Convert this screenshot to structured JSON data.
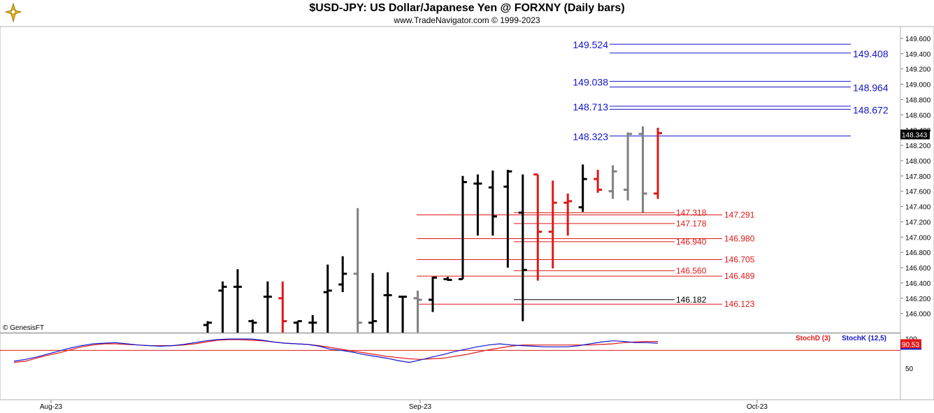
{
  "header": {
    "title": "$USD-JPY:  US Dollar/Japanese Yen @ FORXNY  (Daily bars)",
    "subtitle": "www.TradeNavigator.com © 1999-2023",
    "copyright_tag": "© GenesisFT"
  },
  "colors": {
    "up_bar": "#000000",
    "down_bar": "#e01818",
    "neutral_bar": "#808080",
    "blue_level": "#1414c8",
    "red_level": "#e01818",
    "stoch_k": "#1414c8",
    "stoch_d": "#e01818",
    "price_badge_bg": "#000000",
    "stoch_badge_bg": "#e01818"
  },
  "chart_data": [
    {
      "type": "ohlc",
      "title": "$USD-JPY:  US Dollar/Japanese Yen @ FORXNY  (Daily bars)",
      "ylim": [
        145.75,
        149.7
      ],
      "y_ticks": [
        "149.600",
        "149.400",
        "149.200",
        "149.000",
        "148.800",
        "148.600",
        "148.400",
        "148.200",
        "148.000",
        "147.800",
        "147.600",
        "147.400",
        "147.200",
        "147.000",
        "146.800",
        "146.600",
        "146.400",
        "146.200",
        "146.000"
      ],
      "last_price": "148.343",
      "x_labels": [
        "Aug-23",
        "Sep-23",
        "Oct-23"
      ],
      "bars": [
        {
          "c": "up",
          "h": 145.9,
          "l": 145.75,
          "o": 145.85,
          "cl": 145.88
        },
        {
          "c": "up",
          "h": 146.42,
          "l": 145.75,
          "o": 146.3,
          "cl": 146.35
        },
        {
          "c": "up",
          "h": 146.58,
          "l": 145.75,
          "o": 146.35,
          "cl": 146.35
        },
        {
          "c": "up",
          "h": 145.92,
          "l": 145.75,
          "o": 145.9,
          "cl": 145.88
        },
        {
          "c": "up",
          "h": 146.42,
          "l": 145.75,
          "o": 146.22,
          "cl": 146.22
        },
        {
          "c": "dn",
          "h": 146.42,
          "l": 145.75,
          "o": 146.2,
          "cl": 145.9
        },
        {
          "c": "up",
          "h": 145.9,
          "l": 145.75,
          "o": 145.88,
          "cl": 145.9
        },
        {
          "c": "up",
          "h": 145.98,
          "l": 145.75,
          "o": 145.88,
          "cl": 145.88
        },
        {
          "c": "up",
          "h": 146.64,
          "l": 145.75,
          "o": 146.28,
          "cl": 146.3
        },
        {
          "c": "up",
          "h": 146.75,
          "l": 146.28,
          "o": 146.38,
          "cl": 146.52
        },
        {
          "c": "nu",
          "h": 147.38,
          "l": 145.75,
          "o": 146.52,
          "cl": 145.88
        },
        {
          "c": "up",
          "h": 146.53,
          "l": 145.75,
          "o": 145.88,
          "cl": 145.9
        },
        {
          "c": "up",
          "h": 146.54,
          "l": 145.75,
          "o": 146.24,
          "cl": 146.24
        },
        {
          "c": "up",
          "h": 146.23,
          "l": 145.75,
          "o": 146.22,
          "cl": 146.22
        },
        {
          "c": "nu",
          "h": 146.3,
          "l": 145.75,
          "o": 146.2,
          "cl": 146.18
        },
        {
          "c": "up",
          "h": 146.48,
          "l": 146.02,
          "o": 146.18,
          "cl": 146.47
        },
        {
          "c": "up",
          "h": 146.48,
          "l": 146.43,
          "o": 146.45,
          "cl": 146.44
        },
        {
          "c": "up",
          "h": 147.8,
          "l": 146.45,
          "o": 146.45,
          "cl": 147.72
        },
        {
          "c": "up",
          "h": 147.82,
          "l": 147.02,
          "o": 147.7,
          "cl": 147.7
        },
        {
          "c": "up",
          "h": 147.87,
          "l": 147.02,
          "o": 147.65,
          "cl": 147.27
        },
        {
          "c": "up",
          "h": 147.88,
          "l": 146.6,
          "o": 147.66,
          "cl": 147.86
        },
        {
          "c": "up",
          "h": 147.82,
          "l": 145.9,
          "o": 147.32,
          "cl": 146.57
        },
        {
          "c": "dn",
          "h": 147.82,
          "l": 146.43,
          "o": 147.82,
          "cl": 147.07
        },
        {
          "c": "dn",
          "h": 147.74,
          "l": 146.59,
          "o": 147.07,
          "cl": 147.45
        },
        {
          "c": "dn",
          "h": 147.57,
          "l": 147.02,
          "o": 147.45,
          "cl": 147.47
        },
        {
          "c": "up",
          "h": 147.95,
          "l": 147.33,
          "o": 147.39,
          "cl": 147.76
        },
        {
          "c": "dn",
          "h": 147.88,
          "l": 147.58,
          "o": 147.76,
          "cl": 147.62
        },
        {
          "c": "nu",
          "h": 147.94,
          "l": 147.5,
          "o": 147.6,
          "cl": 147.86
        },
        {
          "c": "nu",
          "h": 148.37,
          "l": 147.48,
          "o": 147.62,
          "cl": 148.35
        },
        {
          "c": "nu",
          "h": 148.45,
          "l": 147.32,
          "o": 148.35,
          "cl": 147.57
        },
        {
          "c": "dn",
          "h": 148.43,
          "l": 147.5,
          "o": 147.57,
          "cl": 148.36
        }
      ],
      "levels_blue": [
        {
          "value": 149.524,
          "label": "149.524",
          "side": "left"
        },
        {
          "value": 149.408,
          "label": "149.408",
          "side": "right"
        },
        {
          "value": 149.038,
          "label": "149.038",
          "side": "left"
        },
        {
          "value": 148.964,
          "label": "148.964",
          "side": "right"
        },
        {
          "value": 148.713,
          "label": "148.713",
          "side": "left"
        },
        {
          "value": 148.672,
          "label": "148.672",
          "side": "right"
        },
        {
          "value": 148.323,
          "label": "148.323",
          "side": "left"
        }
      ],
      "levels_red": [
        {
          "value": 147.318,
          "label": "147.318",
          "side": "left"
        },
        {
          "value": 147.291,
          "label": "147.291",
          "side": "right"
        },
        {
          "value": 147.178,
          "label": "147.178",
          "side": "left"
        },
        {
          "value": 146.98,
          "label": "146.980",
          "side": "right"
        },
        {
          "value": 146.94,
          "label": "146.940",
          "side": "left"
        },
        {
          "value": 146.705,
          "label": "146.705",
          "side": "right"
        },
        {
          "value": 146.56,
          "label": "146.560",
          "side": "left"
        },
        {
          "value": 146.489,
          "label": "146.489",
          "side": "right"
        },
        {
          "value": 146.182,
          "label": "146.182",
          "side": "left",
          "color": "black"
        },
        {
          "value": 146.123,
          "label": "146.123",
          "side": "right"
        }
      ]
    },
    {
      "type": "line",
      "title": "",
      "ylim": [
        0,
        105
      ],
      "y_ticks": [
        "100",
        "50"
      ],
      "series": [
        {
          "name": "StochD (3)",
          "color": "#e01818",
          "values": [
            60,
            62,
            67,
            72,
            76,
            81,
            86,
            89,
            91,
            91,
            90,
            89,
            88,
            88,
            88,
            89,
            91,
            94,
            97,
            98,
            98,
            97,
            96,
            94,
            92,
            91,
            90,
            88,
            85,
            82,
            79,
            76,
            73,
            70,
            68,
            66,
            65,
            66,
            67,
            70,
            73,
            77,
            81,
            84,
            87,
            89,
            89,
            89,
            89,
            89,
            89,
            89,
            90,
            91,
            93,
            94,
            95,
            95
          ]
        },
        {
          "name": "StochK (12,5)",
          "color": "#1414c8",
          "values": [
            62,
            65,
            69,
            74,
            79,
            84,
            88,
            91,
            92,
            93,
            91,
            89,
            88,
            87,
            88,
            90,
            93,
            96,
            98,
            99,
            99,
            99,
            97,
            94,
            92,
            91,
            90,
            87,
            82,
            80,
            77,
            73,
            70,
            67,
            63,
            60,
            64,
            69,
            73,
            78,
            82,
            86,
            89,
            91,
            89,
            88,
            87,
            86,
            86,
            86,
            88,
            91,
            94,
            96,
            95,
            93,
            93,
            92
          ]
        }
      ],
      "stoch_value": "90.53"
    }
  ]
}
